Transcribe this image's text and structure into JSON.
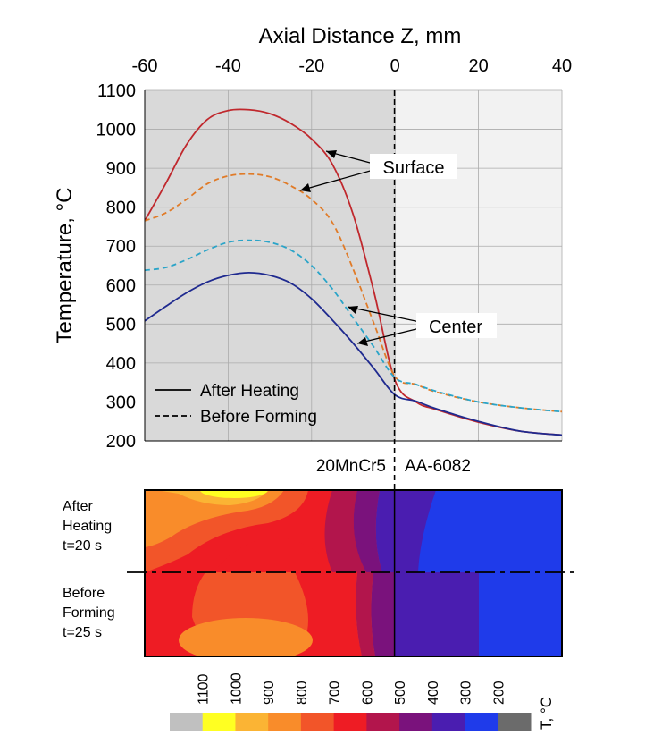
{
  "chart_data": {
    "type": "line",
    "xlabel": "Axial Distance Z, mm",
    "ylabel": "Temperature, °C",
    "xlim": [
      -60,
      40
    ],
    "ylim": [
      200,
      1100
    ],
    "x_ticks": [
      "-60",
      "-40",
      "-20",
      "0",
      "20",
      "40"
    ],
    "y_ticks": [
      "200",
      "300",
      "400",
      "500",
      "600",
      "700",
      "800",
      "900",
      "1000",
      "1100"
    ],
    "grid": true,
    "legend": {
      "position": "bottom-left",
      "entries": [
        {
          "label": "After Heating",
          "style": "solid"
        },
        {
          "label": "Before Forming",
          "style": "dashed"
        }
      ]
    },
    "material_labels": {
      "left": "20MnCr5",
      "right": "AA-6082"
    },
    "annotations": {
      "surface": "Surface",
      "center": "Center"
    },
    "series": [
      {
        "group": "After Heating",
        "position": "surface",
        "style": "solid",
        "color": "#c0282d",
        "x": [
          -60,
          -55,
          -50,
          -45,
          -40,
          -35,
          -30,
          -25,
          -20,
          -15,
          -10,
          -5,
          0,
          5,
          10,
          20,
          30,
          40
        ],
        "y": [
          765,
          860,
          960,
          1025,
          1048,
          1050,
          1040,
          1015,
          975,
          910,
          780,
          580,
          355,
          300,
          280,
          248,
          225,
          215
        ]
      },
      {
        "group": "Before Forming",
        "position": "surface",
        "style": "dashed",
        "color": "#e07b28",
        "x": [
          -60,
          -55,
          -50,
          -45,
          -40,
          -35,
          -30,
          -25,
          -20,
          -15,
          -10,
          -5,
          0,
          5,
          10,
          20,
          30,
          40
        ],
        "y": [
          765,
          785,
          820,
          860,
          880,
          885,
          878,
          855,
          820,
          760,
          640,
          500,
          365,
          345,
          325,
          300,
          285,
          275
        ]
      },
      {
        "group": "Before Forming",
        "position": "center",
        "style": "dashed",
        "color": "#2aa4c8",
        "x": [
          -60,
          -55,
          -50,
          -45,
          -40,
          -35,
          -30,
          -25,
          -20,
          -15,
          -10,
          -5,
          0,
          5,
          10,
          20,
          30,
          40
        ],
        "y": [
          638,
          645,
          665,
          690,
          710,
          715,
          710,
          690,
          650,
          590,
          515,
          440,
          362,
          345,
          327,
          300,
          285,
          275
        ]
      },
      {
        "group": "After Heating",
        "position": "center",
        "style": "solid",
        "color": "#1f2a8f",
        "x": [
          -60,
          -55,
          -50,
          -45,
          -40,
          -35,
          -30,
          -25,
          -20,
          -15,
          -10,
          -5,
          0,
          5,
          10,
          20,
          30,
          40
        ],
        "y": [
          508,
          545,
          580,
          608,
          625,
          632,
          625,
          605,
          565,
          510,
          450,
          385,
          318,
          302,
          282,
          250,
          225,
          215
        ]
      }
    ],
    "contour": {
      "rows": [
        {
          "label": "After Heating\nt=20 s"
        },
        {
          "label": "Before Forming\nt=25 s"
        }
      ]
    },
    "colorbar": {
      "title": "T, °C",
      "ticks": [
        "1100",
        "1000",
        "900",
        "800",
        "700",
        "600",
        "500",
        "400",
        "300",
        "200"
      ],
      "colors": [
        "#c0c0c0",
        "#ffff22",
        "#fbb434",
        "#f98c2a",
        "#f25529",
        "#ee1c24",
        "#b2154c",
        "#7a127c",
        "#4a1db0",
        "#1f3bea",
        "#6b6b6b"
      ]
    }
  }
}
